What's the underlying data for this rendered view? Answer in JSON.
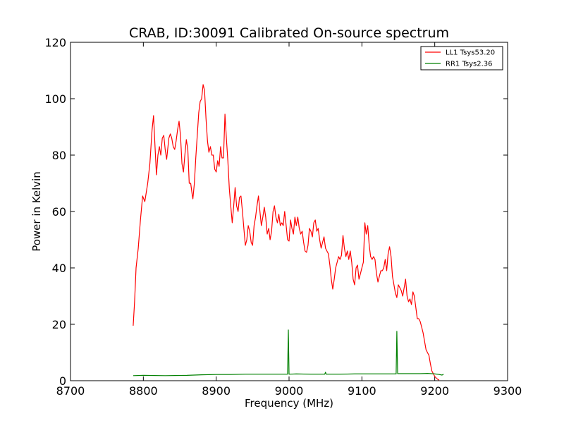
{
  "chart_data": {
    "type": "line",
    "title": "CRAB, ID:30091 Calibrated On-source spectrum",
    "xlabel": "Frequency (MHz)",
    "ylabel": "Power in Kelvin",
    "xlim": [
      8700,
      9300
    ],
    "ylim": [
      0,
      120
    ],
    "xticks": [
      "8700",
      "8800",
      "8900",
      "9000",
      "9100",
      "9200",
      "9300"
    ],
    "yticks": [
      "0",
      "20",
      "40",
      "60",
      "80",
      "100",
      "120"
    ],
    "legend_position": "top-right",
    "grid": false,
    "series": [
      {
        "name": "LL1 Tsys53.20",
        "color": "#ff0000",
        "points": [
          [
            8786,
            19.5
          ],
          [
            8788,
            28
          ],
          [
            8790,
            40
          ],
          [
            8793,
            47
          ],
          [
            8796,
            57
          ],
          [
            8799,
            65.5
          ],
          [
            8802,
            63.5
          ],
          [
            8806,
            70
          ],
          [
            8809,
            77
          ],
          [
            8812,
            89
          ],
          [
            8814,
            94
          ],
          [
            8816,
            83
          ],
          [
            8818,
            73
          ],
          [
            8820,
            80
          ],
          [
            8822,
            83
          ],
          [
            8824,
            80
          ],
          [
            8826,
            86
          ],
          [
            8828,
            87
          ],
          [
            8830,
            82
          ],
          [
            8832,
            78.5
          ],
          [
            8835,
            86
          ],
          [
            8837,
            87.5
          ],
          [
            8839,
            86
          ],
          [
            8841,
            83
          ],
          [
            8843,
            82
          ],
          [
            8845,
            85
          ],
          [
            8847,
            89
          ],
          [
            8849,
            92
          ],
          [
            8851,
            87
          ],
          [
            8853,
            77
          ],
          [
            8855,
            74
          ],
          [
            8857,
            80
          ],
          [
            8859,
            85.5
          ],
          [
            8861,
            82
          ],
          [
            8863,
            70
          ],
          [
            8865,
            70
          ],
          [
            8867,
            66
          ],
          [
            8868,
            64.5
          ],
          [
            8870,
            70
          ],
          [
            8872,
            79
          ],
          [
            8874,
            87
          ],
          [
            8876,
            95
          ],
          [
            8878,
            99
          ],
          [
            8880,
            100
          ],
          [
            8882,
            105
          ],
          [
            8884,
            103
          ],
          [
            8886,
            93
          ],
          [
            8888,
            85
          ],
          [
            8890,
            81
          ],
          [
            8892,
            83
          ],
          [
            8894,
            80
          ],
          [
            8896,
            80
          ],
          [
            8898,
            75
          ],
          [
            8900,
            74
          ],
          [
            8902,
            78
          ],
          [
            8904,
            76
          ],
          [
            8906,
            83
          ],
          [
            8908,
            79
          ],
          [
            8910,
            79
          ],
          [
            8912,
            94.5
          ],
          [
            8914,
            86
          ],
          [
            8916,
            78
          ],
          [
            8918,
            68
          ],
          [
            8920,
            62
          ],
          [
            8922,
            56
          ],
          [
            8924,
            62
          ],
          [
            8926,
            68.5
          ],
          [
            8928,
            62
          ],
          [
            8930,
            60
          ],
          [
            8932,
            65
          ],
          [
            8934,
            65.5
          ],
          [
            8936,
            60
          ],
          [
            8938,
            54
          ],
          [
            8940,
            48
          ],
          [
            8942,
            50
          ],
          [
            8944,
            55
          ],
          [
            8946,
            53
          ],
          [
            8948,
            49
          ],
          [
            8950,
            48
          ],
          [
            8952,
            55
          ],
          [
            8954,
            58
          ],
          [
            8956,
            62
          ],
          [
            8958,
            65.5
          ],
          [
            8960,
            60
          ],
          [
            8962,
            55
          ],
          [
            8964,
            58
          ],
          [
            8966,
            61.5
          ],
          [
            8968,
            58
          ],
          [
            8970,
            52
          ],
          [
            8972,
            54
          ],
          [
            8974,
            50
          ],
          [
            8976,
            53
          ],
          [
            8978,
            60
          ],
          [
            8980,
            62
          ],
          [
            8982,
            58
          ],
          [
            8984,
            56
          ],
          [
            8986,
            59
          ],
          [
            8988,
            55
          ],
          [
            8990,
            56
          ],
          [
            8992,
            55
          ],
          [
            8994,
            60
          ],
          [
            8996,
            55
          ],
          [
            8998,
            50
          ],
          [
            9000,
            49.5
          ],
          [
            9002,
            57
          ],
          [
            9004,
            54
          ],
          [
            9006,
            52
          ],
          [
            9008,
            58
          ],
          [
            9010,
            55
          ],
          [
            9012,
            58
          ],
          [
            9014,
            54
          ],
          [
            9016,
            52
          ],
          [
            9018,
            53
          ],
          [
            9020,
            49
          ],
          [
            9022,
            46
          ],
          [
            9024,
            45.5
          ],
          [
            9026,
            48
          ],
          [
            9028,
            54
          ],
          [
            9030,
            53
          ],
          [
            9032,
            51
          ],
          [
            9034,
            56
          ],
          [
            9036,
            57
          ],
          [
            9038,
            53
          ],
          [
            9040,
            54
          ],
          [
            9042,
            50
          ],
          [
            9044,
            47
          ],
          [
            9046,
            49
          ],
          [
            9048,
            51
          ],
          [
            9050,
            47
          ],
          [
            9052,
            46
          ],
          [
            9054,
            45
          ],
          [
            9056,
            41
          ],
          [
            9058,
            36
          ],
          [
            9060,
            32.5
          ],
          [
            9062,
            36
          ],
          [
            9064,
            40
          ],
          [
            9066,
            42
          ],
          [
            9068,
            44
          ],
          [
            9070,
            43
          ],
          [
            9072,
            44.5
          ],
          [
            9074,
            51.5
          ],
          [
            9076,
            47
          ],
          [
            9078,
            44
          ],
          [
            9080,
            46
          ],
          [
            9082,
            43
          ],
          [
            9084,
            46
          ],
          [
            9086,
            42
          ],
          [
            9088,
            36
          ],
          [
            9090,
            34
          ],
          [
            9092,
            40
          ],
          [
            9094,
            41
          ],
          [
            9096,
            36
          ],
          [
            9098,
            38
          ],
          [
            9100,
            40
          ],
          [
            9102,
            42
          ],
          [
            9104,
            56
          ],
          [
            9106,
            52
          ],
          [
            9108,
            55
          ],
          [
            9110,
            48
          ],
          [
            9112,
            44
          ],
          [
            9114,
            43
          ],
          [
            9116,
            44
          ],
          [
            9118,
            43
          ],
          [
            9120,
            38
          ],
          [
            9122,
            35
          ],
          [
            9124,
            37
          ],
          [
            9126,
            39
          ],
          [
            9128,
            39
          ],
          [
            9130,
            40
          ],
          [
            9132,
            43
          ],
          [
            9134,
            39
          ],
          [
            9136,
            45
          ],
          [
            9138,
            47.5
          ],
          [
            9140,
            44
          ],
          [
            9142,
            37
          ],
          [
            9144,
            34
          ],
          [
            9146,
            31
          ],
          [
            9148,
            29.5
          ],
          [
            9150,
            34
          ],
          [
            9152,
            33
          ],
          [
            9154,
            32
          ],
          [
            9156,
            30
          ],
          [
            9158,
            33
          ],
          [
            9160,
            36
          ],
          [
            9162,
            30
          ],
          [
            9164,
            28
          ],
          [
            9166,
            29
          ],
          [
            9168,
            27
          ],
          [
            9170,
            31.5
          ],
          [
            9172,
            30
          ],
          [
            9174,
            26
          ],
          [
            9176,
            22
          ],
          [
            9178,
            22
          ],
          [
            9180,
            21
          ],
          [
            9182,
            19
          ],
          [
            9184,
            17
          ],
          [
            9186,
            14
          ],
          [
            9188,
            11
          ],
          [
            9190,
            10
          ],
          [
            9192,
            9
          ],
          [
            9194,
            6
          ],
          [
            9196,
            3.5
          ],
          [
            9198,
            2.5
          ],
          [
            9200,
            1.5
          ],
          [
            9202,
            1
          ],
          [
            9204,
            0.5
          ],
          [
            9206,
            0.2
          ]
        ]
      },
      {
        "name": "RR1 Tsys2.36",
        "color": "#008000",
        "points": [
          [
            8786,
            1.8
          ],
          [
            8800,
            1.9
          ],
          [
            8830,
            1.8
          ],
          [
            8860,
            1.9
          ],
          [
            8880,
            2.1
          ],
          [
            8900,
            2.2
          ],
          [
            8920,
            2.2
          ],
          [
            8940,
            2.3
          ],
          [
            8960,
            2.3
          ],
          [
            8980,
            2.3
          ],
          [
            8998,
            2.3
          ],
          [
            8999,
            18
          ],
          [
            9000,
            2.3
          ],
          [
            9010,
            2.4
          ],
          [
            9030,
            2.3
          ],
          [
            9049,
            2.3
          ],
          [
            9050,
            3.0
          ],
          [
            9051,
            2.3
          ],
          [
            9070,
            2.3
          ],
          [
            9090,
            2.4
          ],
          [
            9110,
            2.4
          ],
          [
            9130,
            2.4
          ],
          [
            9147,
            2.4
          ],
          [
            9148,
            17.5
          ],
          [
            9149,
            2.5
          ],
          [
            9160,
            2.5
          ],
          [
            9180,
            2.5
          ],
          [
            9190,
            2.6
          ],
          [
            9200,
            2.4
          ],
          [
            9206,
            2.2
          ],
          [
            9210,
            2.0
          ],
          [
            9212,
            2.3
          ]
        ]
      }
    ]
  }
}
